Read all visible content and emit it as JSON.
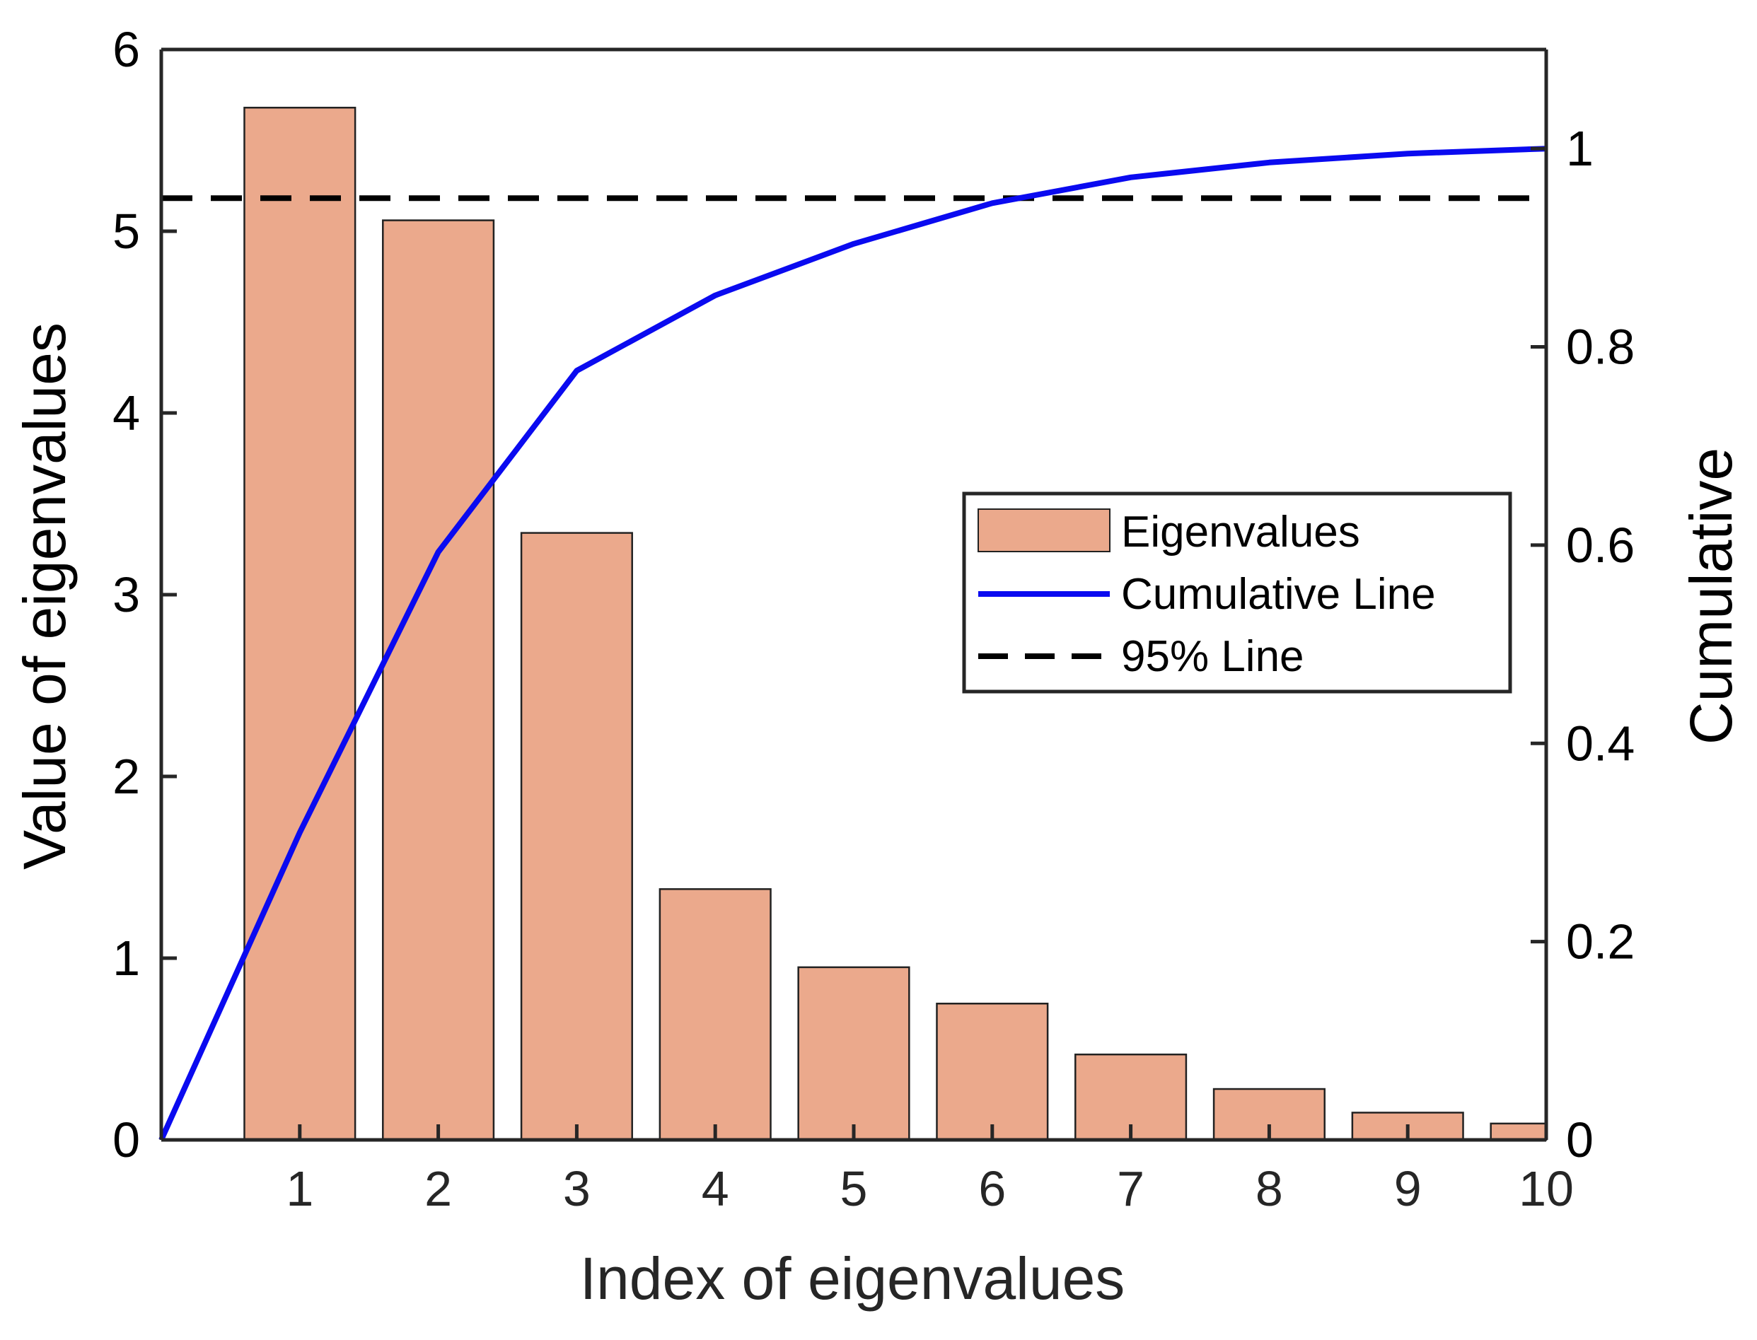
{
  "chart_data": {
    "type": "bar",
    "title": "",
    "xlabel": "Index of eigenvalues",
    "ylabel_left": "Value of eigenvalues",
    "ylabel_right": "Cumulative",
    "categories": [
      "1",
      "2",
      "3",
      "4",
      "5",
      "6",
      "7",
      "8",
      "9",
      "10"
    ],
    "xlim": [
      0,
      10
    ],
    "ylim_left": [
      0,
      6
    ],
    "ylim_right": [
      0,
      1.1
    ],
    "left_ticks": [
      "0",
      "1",
      "2",
      "3",
      "4",
      "5",
      "6"
    ],
    "left_tick_values": [
      0,
      1,
      2,
      3,
      4,
      5,
      6
    ],
    "right_ticks": [
      "0",
      "0.2",
      "0.4",
      "0.6",
      "0.8",
      "1"
    ],
    "right_tick_values": [
      0,
      0.2,
      0.4,
      0.6,
      0.8,
      1.0
    ],
    "x_ticks": [
      "1",
      "2",
      "3",
      "4",
      "5",
      "6",
      "7",
      "8",
      "9",
      "10"
    ],
    "x_tick_values": [
      1,
      2,
      3,
      4,
      5,
      6,
      7,
      8,
      9,
      10
    ],
    "series": [
      {
        "name": "Eigenvalues",
        "type": "bar",
        "axis": "left",
        "color": "#EBA98C",
        "edge_color": "#222222",
        "x": [
          1,
          2,
          3,
          4,
          5,
          6,
          7,
          8,
          9,
          10
        ],
        "values": [
          5.68,
          5.06,
          3.34,
          1.38,
          0.95,
          0.75,
          0.47,
          0.28,
          0.15,
          0.09
        ]
      },
      {
        "name": "Cumulative Line",
        "type": "line",
        "axis": "right",
        "color": "#0A0AF0",
        "x": [
          0,
          1,
          2,
          3,
          4,
          5,
          6,
          7,
          8,
          9,
          10
        ],
        "values": [
          0,
          0.31,
          0.593,
          0.776,
          0.852,
          0.904,
          0.945,
          0.971,
          0.986,
          0.995,
          1.0
        ]
      },
      {
        "name": "95% Line",
        "type": "line",
        "style": "dashed",
        "axis": "right",
        "color": "#000000",
        "x": [
          0,
          10
        ],
        "values": [
          0.95,
          0.95
        ]
      }
    ],
    "legend": {
      "position": "center-right",
      "entries": [
        "Eigenvalues",
        "Cumulative Line",
        "95% Line"
      ]
    },
    "grid": false
  }
}
